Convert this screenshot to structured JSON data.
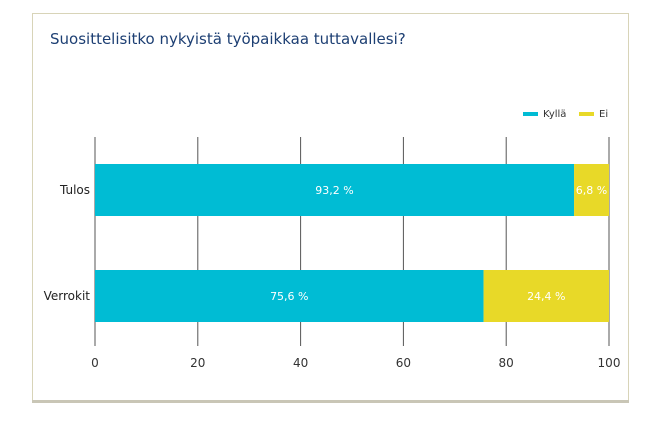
{
  "chart_data": {
    "type": "bar",
    "orientation": "horizontal",
    "stacked": true,
    "title": "Suosittelisitko nykyistä työpaikkaa tuttavallesi?",
    "categories": [
      "Tulos",
      "Verrokit"
    ],
    "series": [
      {
        "name": "Kyllä",
        "values": [
          93.2,
          75.6
        ],
        "labels": [
          "93,2 %",
          "75,6 %"
        ],
        "color": "#00bcd4"
      },
      {
        "name": "Ei",
        "values": [
          6.8,
          24.4
        ],
        "labels": [
          "6,8 %",
          "24,4 %"
        ],
        "color": "#e8d928"
      }
    ],
    "xlim": [
      0,
      100
    ],
    "xticks": [
      "0",
      "20",
      "40",
      "60",
      "80",
      "100"
    ],
    "grid": true,
    "legend_position": "top-right"
  }
}
